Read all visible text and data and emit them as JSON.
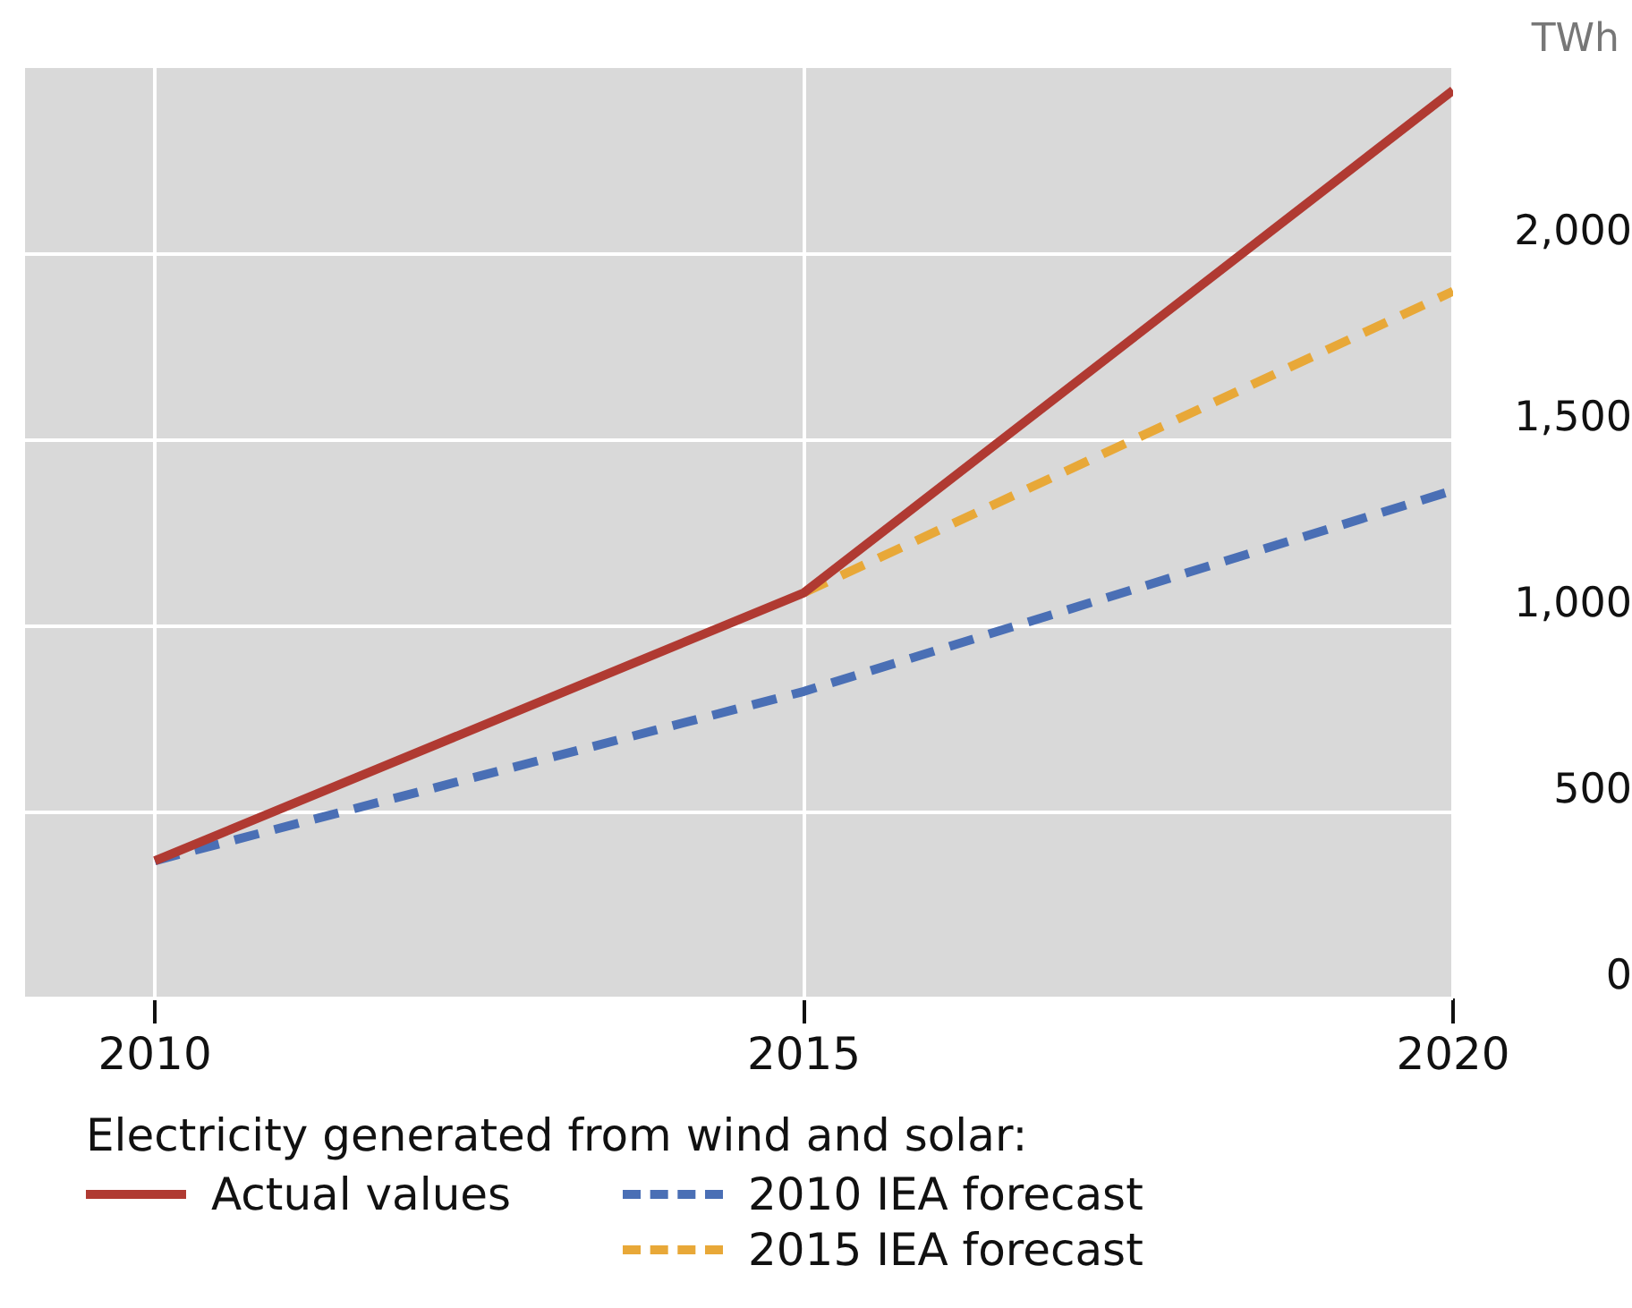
{
  "chart_data": {
    "type": "line",
    "ylabel": "TWh",
    "legend_title": "Electricity generated from wind and solar:",
    "x": [
      2010,
      2015,
      2020
    ],
    "series": [
      {
        "name": "Actual values",
        "color": "#b03a32",
        "values": [
          370,
          1090,
          2440
        ],
        "line_style": "solid"
      },
      {
        "name": "2010 IEA forecast",
        "color": "#4a6fb5",
        "values": [
          370,
          825,
          1365
        ],
        "line_style": "dashed"
      },
      {
        "name": "2015 IEA forecast",
        "color": "#e8a838",
        "x": [
          2015,
          2020
        ],
        "values": [
          1090,
          1900
        ],
        "line_style": "dashed"
      }
    ],
    "xlim": [
      2009,
      2020
    ],
    "xticks": [
      2010,
      2015,
      2020
    ],
    "ylim": [
      0,
      2500
    ],
    "yticks": [
      0,
      500,
      {
        "value": 1000,
        "label": "1,000"
      },
      {
        "value": 1500,
        "label": "1,500"
      },
      {
        "value": 2000,
        "label": "2,000"
      }
    ],
    "grid": true,
    "legend": "bottom",
    "marker": "none"
  }
}
